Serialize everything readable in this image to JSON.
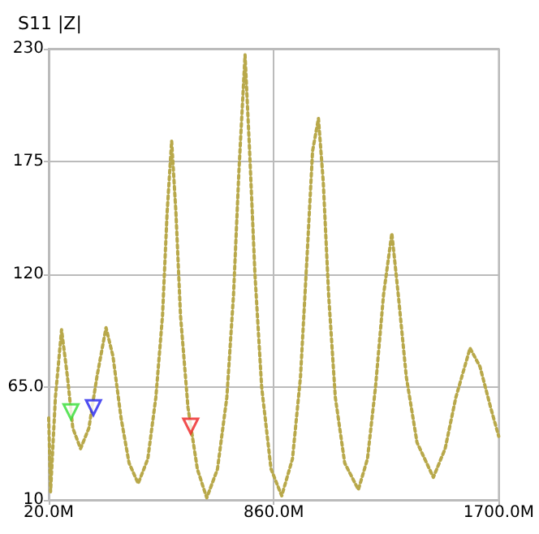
{
  "chart_data": {
    "type": "line",
    "title": "S11 |Z|",
    "xlim": [
      20,
      1700
    ],
    "xticks": [
      {
        "value": 20,
        "label": "20.0M"
      },
      {
        "value": 860,
        "label": "860.0M"
      },
      {
        "value": 1700,
        "label": "1700.0M"
      }
    ],
    "ylim": [
      10,
      230
    ],
    "yticks": [
      10,
      {
        "value": 65,
        "label": "65.0"
      },
      120,
      175,
      230
    ],
    "grid": true,
    "series": [
      {
        "color": "#b8a84a",
        "line_style": "dotted",
        "marker": "none",
        "x": [
          20,
          27,
          45,
          68,
          90,
          110,
          139,
          170,
          200,
          234,
          260,
          290,
          320,
          354,
          390,
          420,
          445,
          462,
          479,
          495,
          512,
          540,
          575,
          610,
          650,
          685,
          710,
          730,
          753,
          770,
          790,
          815,
          850,
          890,
          930,
          960,
          985,
          1005,
          1027,
          1045,
          1065,
          1090,
          1125,
          1176,
          1210,
          1240,
          1270,
          1301,
          1325,
          1355,
          1395,
          1456,
          1500,
          1540,
          1593,
          1630,
          1670,
          1700
        ],
        "values": [
          50,
          14,
          60,
          93,
          70,
          45,
          35,
          45,
          70,
          94,
          80,
          50,
          28,
          18,
          30,
          60,
          100,
          150,
          185,
          150,
          100,
          55,
          25,
          11,
          25,
          60,
          110,
          170,
          227,
          180,
          120,
          65,
          25,
          12,
          30,
          70,
          130,
          180,
          196,
          165,
          110,
          60,
          28,
          15,
          30,
          65,
          110,
          140,
          110,
          70,
          38,
          21,
          35,
          60,
          84,
          75,
          55,
          41
        ]
      },
      {
        "type": "scatter",
        "color": "#33dd33",
        "marker": "triangle",
        "x": [
          103
        ],
        "values": [
          53
        ]
      },
      {
        "type": "scatter",
        "color": "#2222ee",
        "marker": "triangle",
        "x": [
          187
        ],
        "values": [
          55
        ]
      },
      {
        "type": "scatter",
        "color": "#ee2222",
        "marker": "triangle",
        "x": [
          550
        ],
        "values": [
          46
        ]
      }
    ]
  }
}
